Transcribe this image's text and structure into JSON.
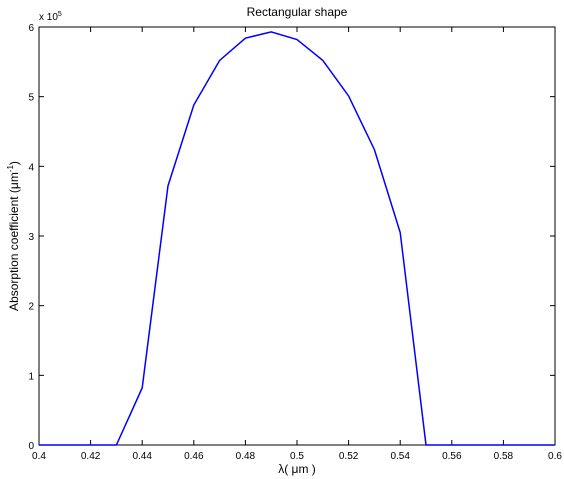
{
  "chart_data": {
    "type": "line",
    "title": "Rectangular shape",
    "xlabel": "λ( μm )",
    "ylabel_main": "Absorption coefficient (μm",
    "ylabel_sup": "-1",
    "ylabel_tail": ")",
    "y_multiplier_base": "x 10",
    "y_multiplier_exp": "5",
    "xlim": [
      0.4,
      0.6
    ],
    "ylim": [
      0,
      6
    ],
    "x_ticks": [
      0.4,
      0.42,
      0.44,
      0.46,
      0.48,
      0.5,
      0.52,
      0.54,
      0.56,
      0.58,
      0.6
    ],
    "x_tick_labels": [
      "0.4",
      "0.42",
      "0.44",
      "0.46",
      "0.48",
      "0.5",
      "0.52",
      "0.54",
      "0.56",
      "0.58",
      "0.6"
    ],
    "y_ticks": [
      0,
      1,
      2,
      3,
      4,
      5,
      6
    ],
    "y_tick_labels": [
      "0",
      "1",
      "2",
      "3",
      "4",
      "5",
      "6"
    ],
    "grid": false,
    "series": [
      {
        "color": "#0000ff",
        "x": [
          0.4,
          0.41,
          0.42,
          0.43,
          0.44,
          0.45,
          0.46,
          0.47,
          0.48,
          0.49,
          0.5,
          0.51,
          0.52,
          0.53,
          0.54,
          0.55,
          0.56,
          0.57,
          0.58,
          0.59,
          0.6
        ],
        "y": [
          0,
          0,
          0,
          0,
          0.82,
          3.72,
          4.88,
          5.52,
          5.84,
          5.93,
          5.82,
          5.52,
          5.01,
          4.24,
          3.05,
          0,
          0,
          0,
          0,
          0,
          0
        ]
      }
    ]
  }
}
